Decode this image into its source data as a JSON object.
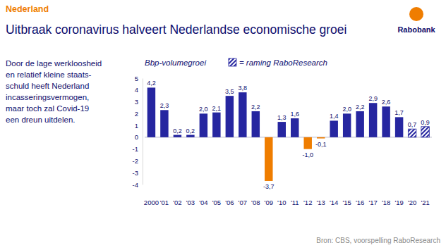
{
  "chart_data": {
    "type": "bar",
    "kicker": "Nederland",
    "title": "Uitbraak coronavirus halveert Nederlandse economische groei",
    "logo": "Rabobank",
    "text": [
      "Door de lage werkloosheid",
      "en relatief kleine staats-",
      "schuld heeft Nederland",
      "incasseringsvermogen,",
      "maar toch zal Covid-19",
      "een dreun uitdelen."
    ],
    "source": "Bron: CBS, voorspelling RaboResearch",
    "categories": [
      "2000",
      "'01",
      "'02",
      "'03",
      "'04",
      "'05",
      "'06",
      "'07",
      "'08",
      "'09",
      "'10",
      "'11",
      "'12",
      "'13",
      "'14",
      "'15",
      "'16",
      "'17",
      "'18",
      "'19",
      "'20",
      "'21"
    ],
    "series": [
      {
        "name": "Bbp-volumegroei",
        "color": "#2626a0",
        "colors": [
          "#2626a0",
          "#2626a0",
          "#2626a0",
          "#2626a0",
          "#2626a0",
          "#2626a0",
          "#2626a0",
          "#2626a0",
          "#2626a0",
          "#ef7d00",
          "#2626a0",
          "#2626a0",
          "#ef7d00",
          "#ef7d00",
          "#2626a0",
          "#2626a0",
          "#2626a0",
          "#2626a0",
          "#2626a0",
          "#2626a0",
          "#2626a0",
          "#2626a0"
        ],
        "values": [
          4.2,
          2.3,
          0.2,
          0.2,
          2.0,
          2.1,
          3.5,
          3.8,
          2.2,
          -3.7,
          1.3,
          1.6,
          -1.0,
          -0.1,
          1.4,
          2.0,
          2.2,
          2.9,
          2.6,
          1.7,
          null,
          null
        ],
        "value_labels": [
          "4,2",
          "2,3",
          "0,2",
          "0,2",
          "2,0",
          "2,1",
          "3,5",
          "3,8",
          "2,2",
          "-3,7",
          "1,3",
          "1,6",
          "-1,0",
          "-0,1",
          "1,4",
          "2,0",
          "2,2",
          "2,9",
          "2,6",
          "1,7",
          null,
          null
        ]
      },
      {
        "name": "= raming RaboResearch",
        "color": "#2626a0",
        "values": [
          null,
          null,
          null,
          null,
          null,
          null,
          null,
          null,
          null,
          null,
          null,
          null,
          null,
          null,
          null,
          null,
          null,
          null,
          null,
          null,
          0.7,
          0.9
        ],
        "value_labels": [
          null,
          null,
          null,
          null,
          null,
          null,
          null,
          null,
          null,
          null,
          null,
          null,
          null,
          null,
          null,
          null,
          null,
          null,
          null,
          null,
          "0,7",
          "0,9"
        ]
      }
    ],
    "ylim": [
      -4,
      5
    ],
    "yticks": [
      -4,
      -3,
      -2,
      -1,
      0,
      1,
      2,
      3,
      4,
      5
    ],
    "grid": false,
    "legend": "top",
    "data_labels": true
  }
}
